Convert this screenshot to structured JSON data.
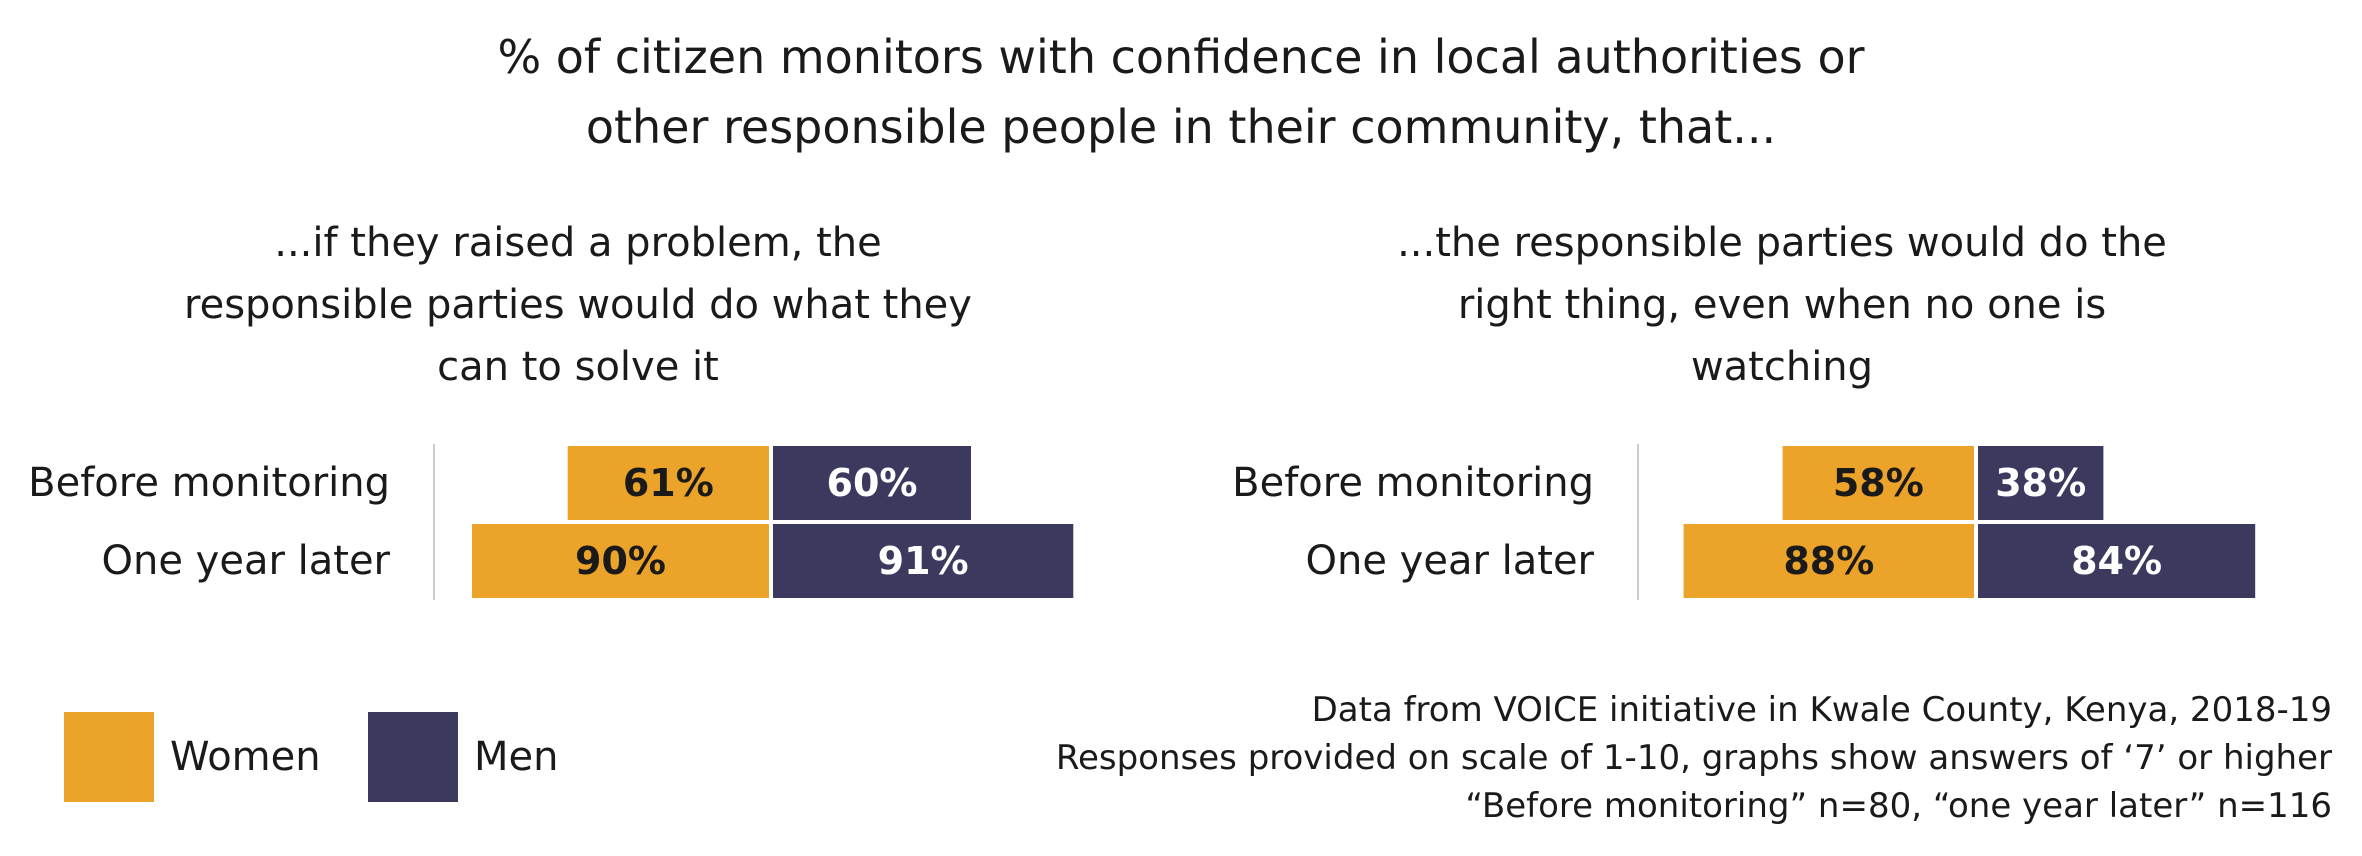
{
  "title_lines": [
    "% of citizen monitors with confidence in local authorities or",
    "other responsible people in their community, that..."
  ],
  "colors": {
    "women": "#ECA32A",
    "men": "#3B3A5E",
    "axis": "#cccccc"
  },
  "legend": {
    "women": "Women",
    "men": "Men"
  },
  "notes": [
    "Data from VOICE initiative in Kwale County, Kenya, 2018-19",
    "Responses provided on scale of 1-10, graphs show answers of ‘7’ or higher",
    "“Before monitoring” n=80, “one year later” n=116"
  ],
  "chart_data": [
    {
      "type": "bar",
      "orientation": "diverging-horizontal",
      "title_lines": [
        "...if they raised a problem, the",
        "responsible parties would do what they",
        "can to solve it"
      ],
      "categories": [
        "Before monitoring",
        "One year later"
      ],
      "series": [
        {
          "name": "Women",
          "values": [
            61,
            90
          ],
          "labels": [
            "61%",
            "90%"
          ]
        },
        {
          "name": "Men",
          "values": [
            60,
            91
          ],
          "labels": [
            "60%",
            "91%"
          ]
        }
      ]
    },
    {
      "type": "bar",
      "orientation": "diverging-horizontal",
      "title_lines": [
        "...the responsible parties would do the",
        "right thing, even when no one is",
        "watching"
      ],
      "categories": [
        "Before monitoring",
        "One year later"
      ],
      "series": [
        {
          "name": "Women",
          "values": [
            58,
            88
          ],
          "labels": [
            "58%",
            "88%"
          ]
        },
        {
          "name": "Men",
          "values": [
            38,
            84
          ],
          "labels": [
            "38%",
            "84%"
          ]
        }
      ]
    }
  ]
}
